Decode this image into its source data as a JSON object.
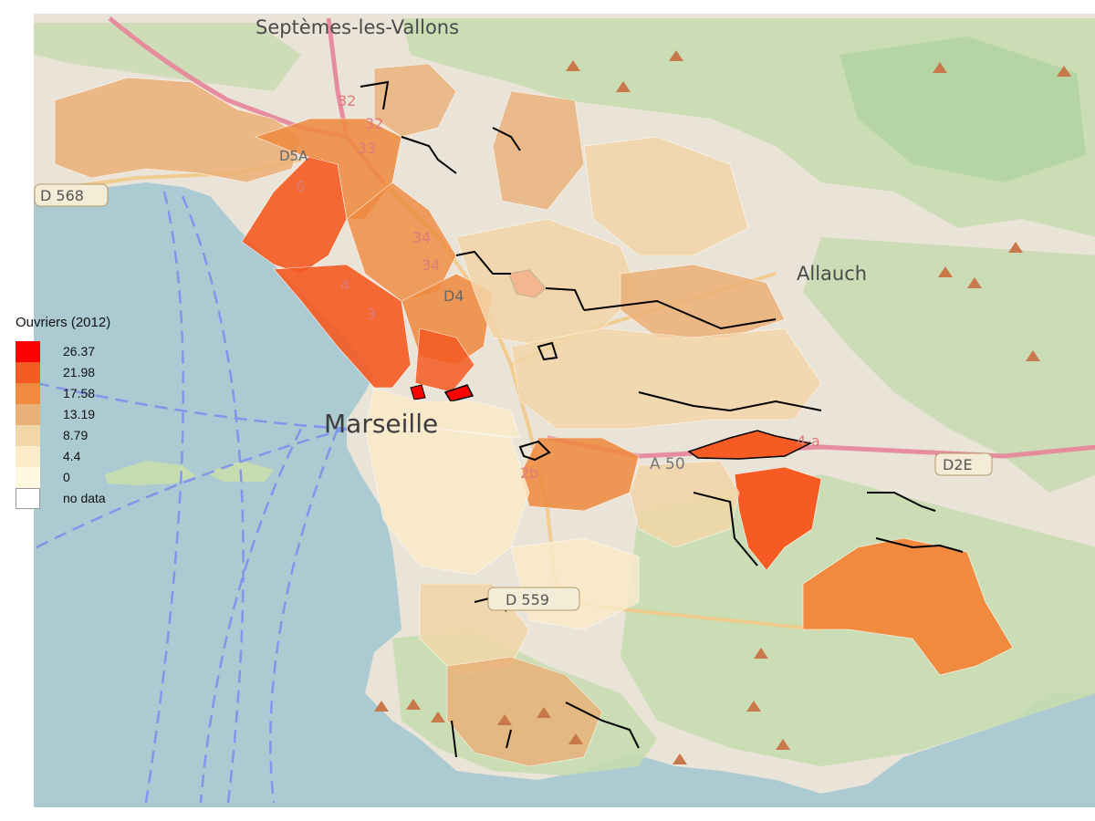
{
  "colors": {
    "sea": "#abcad2",
    "land": "#e9e3d8",
    "green": "#c7dbb0",
    "park": "#aed19d",
    "motorway": "#e8839a",
    "road": "#f3c987",
    "outline": "#000000"
  },
  "map_labels": {
    "septemes": "Septèmes-les-Vallons",
    "allauch": "Allauch",
    "marseille": "Marseille",
    "d568": "D 568",
    "d559": "D 559",
    "d2e": "D2E",
    "d4": "D4",
    "d5a": "D5A",
    "a50": "A 50",
    "r32a": "32",
    "r32b": "32",
    "r33": "33",
    "r34a": "34",
    "r34b": "34",
    "r4a": "4-a",
    "r2b": "2b",
    "r6": "6",
    "r4": "4",
    "r3": "3"
  },
  "legend": {
    "title": "Ouvriers (2012)",
    "items": [
      {
        "label": "26.37",
        "color": "#ff0000"
      },
      {
        "label": "21.98",
        "color": "#f55b22"
      },
      {
        "label": "17.58",
        "color": "#f08a3f"
      },
      {
        "label": "13.19",
        "color": "#ebb077"
      },
      {
        "label": "8.79",
        "color": "#f3d6a8"
      },
      {
        "label": "4.4",
        "color": "#fbebc9"
      },
      {
        "label": "0",
        "color": "#fef8e0"
      },
      {
        "label": "no data",
        "color": "#ffffff"
      }
    ]
  }
}
